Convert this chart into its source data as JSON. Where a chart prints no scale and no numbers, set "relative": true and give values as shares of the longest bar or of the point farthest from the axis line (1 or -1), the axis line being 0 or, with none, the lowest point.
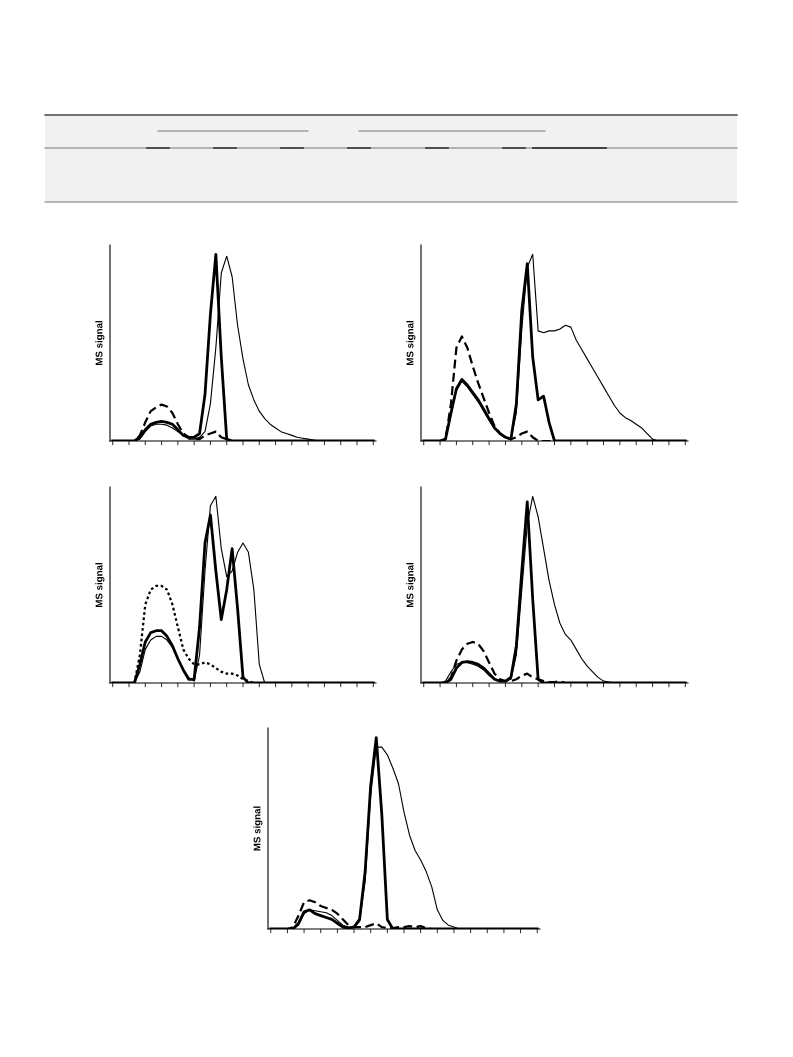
{
  "chart_data": [
    {
      "type": "line",
      "ylabel": "MS signal",
      "relative": true,
      "categories": [
        null,
        null,
        null,
        null,
        null,
        null,
        null,
        null,
        null,
        null,
        null,
        null,
        null,
        null,
        null,
        null,
        null,
        null,
        null,
        null,
        null,
        null,
        null,
        null,
        null,
        null,
        null,
        null,
        null,
        null,
        null,
        null,
        null,
        null,
        null,
        null,
        null,
        null,
        null,
        null,
        null,
        null,
        null,
        null,
        null,
        null,
        null,
        null,
        null
      ],
      "series": [
        {
          "color": "#000000",
          "line_style": "solid",
          "values": [
            0,
            0,
            0,
            0,
            0,
            0.02,
            0.06,
            0.09,
            0.1,
            0.105,
            0.1,
            0.09,
            0.06,
            0.03,
            0.02,
            0.02,
            0.04,
            0.25,
            0.68,
            1.0,
            0.45,
            0.01,
            0,
            0,
            0,
            0,
            0,
            0,
            0,
            0,
            0,
            0,
            0,
            0,
            0,
            0,
            0,
            0,
            0,
            0,
            0,
            0,
            0,
            0,
            0,
            0,
            0,
            0,
            0
          ]
        },
        {
          "color": "#000000",
          "line_style": "solid",
          "values": [
            0,
            0,
            0,
            0,
            0,
            0.01,
            0.05,
            0.08,
            0.09,
            0.09,
            0.085,
            0.07,
            0.05,
            0.03,
            0.01,
            0.01,
            0.02,
            0.05,
            0.2,
            0.5,
            0.9,
            0.99,
            0.88,
            0.62,
            0.44,
            0.3,
            0.22,
            0.16,
            0.12,
            0.09,
            0.07,
            0.05,
            0.04,
            0.03,
            0.02,
            0.015,
            0.01,
            0.005,
            0,
            0,
            0,
            0,
            0,
            0,
            0,
            0,
            0,
            0,
            0
          ]
        },
        {
          "color": "#000000",
          "line_style": "dashed",
          "values": [
            0,
            0,
            0,
            0,
            0,
            0.03,
            0.1,
            0.16,
            0.18,
            0.195,
            0.185,
            0.15,
            0.09,
            0.04,
            0.02,
            0.01,
            0.01,
            0.03,
            0.04,
            0.05,
            0.02,
            0.01,
            0,
            0,
            0,
            0,
            0,
            0,
            0,
            0,
            0,
            0,
            0,
            0,
            0,
            0,
            0,
            0,
            0,
            0,
            0,
            0,
            0,
            0,
            0,
            0,
            0,
            0,
            0
          ]
        }
      ]
    },
    {
      "type": "line",
      "ylabel": "MS signal",
      "relative": true,
      "categories": [
        null,
        null,
        null,
        null,
        null,
        null,
        null,
        null,
        null,
        null,
        null,
        null,
        null,
        null,
        null,
        null,
        null,
        null,
        null,
        null,
        null,
        null,
        null,
        null,
        null,
        null,
        null,
        null,
        null,
        null,
        null,
        null,
        null,
        null,
        null,
        null,
        null,
        null,
        null,
        null,
        null,
        null,
        null,
        null,
        null,
        null,
        null,
        null,
        null
      ],
      "series": [
        {
          "color": "#000000",
          "line_style": "solid",
          "values": [
            0,
            0,
            0,
            0,
            0.01,
            0.15,
            0.28,
            0.33,
            0.3,
            0.26,
            0.22,
            0.17,
            0.12,
            0.07,
            0.04,
            0.02,
            0.01,
            0.2,
            0.7,
            0.95,
            0.45,
            0.22,
            0.24,
            0.1,
            0,
            0,
            0,
            0,
            0,
            0,
            0,
            0,
            0,
            0,
            0,
            0,
            0,
            0,
            0,
            0,
            0,
            0,
            0,
            0,
            0,
            0,
            0,
            0,
            0
          ]
        },
        {
          "color": "#000000",
          "line_style": "solid",
          "values": [
            0,
            0,
            0,
            0,
            0.01,
            0.14,
            0.27,
            0.32,
            0.29,
            0.25,
            0.21,
            0.16,
            0.11,
            0.07,
            0.04,
            0.02,
            0.01,
            0.15,
            0.6,
            0.93,
            1.0,
            0.59,
            0.58,
            0.59,
            0.59,
            0.6,
            0.62,
            0.61,
            0.54,
            0.49,
            0.44,
            0.39,
            0.34,
            0.29,
            0.24,
            0.19,
            0.15,
            0.125,
            0.11,
            0.09,
            0.07,
            0.04,
            0.01,
            0,
            0,
            0,
            0,
            0,
            0
          ]
        },
        {
          "color": "#000000",
          "line_style": "dashed",
          "values": [
            0,
            0,
            0,
            0,
            0.01,
            0.2,
            0.5,
            0.56,
            0.5,
            0.4,
            0.31,
            0.23,
            0.15,
            0.08,
            0.04,
            0.02,
            0.01,
            0.02,
            0.04,
            0.05,
            0.02,
            0,
            0,
            0,
            0,
            0,
            0,
            0,
            0,
            0,
            0,
            0,
            0,
            0,
            0,
            0,
            0,
            0,
            0,
            0,
            0,
            0,
            0,
            0,
            0,
            0,
            0,
            0,
            0
          ]
        }
      ]
    },
    {
      "type": "line",
      "ylabel": "MS signal",
      "relative": true,
      "categories": [
        null,
        null,
        null,
        null,
        null,
        null,
        null,
        null,
        null,
        null,
        null,
        null,
        null,
        null,
        null,
        null,
        null,
        null,
        null,
        null,
        null,
        null,
        null,
        null,
        null,
        null,
        null,
        null,
        null,
        null,
        null,
        null,
        null,
        null,
        null,
        null,
        null,
        null,
        null,
        null,
        null,
        null,
        null,
        null,
        null,
        null,
        null,
        null,
        null
      ],
      "series": [
        {
          "color": "#000000",
          "line_style": "solid",
          "values": [
            0,
            0,
            0,
            0,
            0,
            0.1,
            0.22,
            0.27,
            0.28,
            0.28,
            0.25,
            0.2,
            0.13,
            0.07,
            0.02,
            0.02,
            0.3,
            0.75,
            0.9,
            0.6,
            0.34,
            0.5,
            0.72,
            0.4,
            0.03,
            0,
            0,
            0,
            0,
            0,
            0,
            0,
            0,
            0,
            0,
            0,
            0,
            0,
            0,
            0,
            0,
            0,
            0,
            0,
            0,
            0,
            0,
            0,
            0
          ]
        },
        {
          "color": "#000000",
          "line_style": "solid",
          "values": [
            0,
            0,
            0,
            0,
            0,
            0.06,
            0.18,
            0.23,
            0.25,
            0.25,
            0.23,
            0.19,
            0.13,
            0.07,
            0.03,
            0.01,
            0.15,
            0.6,
            0.95,
            1.0,
            0.72,
            0.57,
            0.6,
            0.7,
            0.75,
            0.7,
            0.5,
            0.1,
            0,
            0,
            0,
            0,
            0,
            0,
            0,
            0,
            0,
            0,
            0,
            0,
            0,
            0,
            0,
            0,
            0,
            0,
            0,
            0,
            0
          ]
        },
        {
          "color": "#000000",
          "line_style": "dotted",
          "values": [
            0,
            0,
            0,
            0,
            0,
            0.15,
            0.42,
            0.5,
            0.52,
            0.52,
            0.5,
            0.42,
            0.3,
            0.18,
            0.13,
            0.1,
            0.1,
            0.11,
            0.1,
            0.08,
            0.06,
            0.05,
            0.05,
            0.04,
            0.02,
            0.01,
            0,
            0,
            0,
            0,
            0,
            0,
            0,
            0,
            0,
            0,
            0,
            0,
            0,
            0,
            0,
            0,
            0,
            0,
            0,
            0,
            0,
            0,
            0
          ]
        }
      ]
    },
    {
      "type": "line",
      "ylabel": "MS signal",
      "relative": true,
      "categories": [
        null,
        null,
        null,
        null,
        null,
        null,
        null,
        null,
        null,
        null,
        null,
        null,
        null,
        null,
        null,
        null,
        null,
        null,
        null,
        null,
        null,
        null,
        null,
        null,
        null,
        null,
        null,
        null,
        null,
        null,
        null,
        null,
        null,
        null,
        null,
        null,
        null,
        null,
        null,
        null,
        null,
        null,
        null,
        null,
        null,
        null,
        null,
        null,
        null
      ],
      "series": [
        {
          "color": "#000000",
          "line_style": "solid",
          "values": [
            0,
            0,
            0,
            0,
            0,
            0.02,
            0.08,
            0.11,
            0.115,
            0.11,
            0.1,
            0.08,
            0.05,
            0.02,
            0.01,
            0.01,
            0.03,
            0.2,
            0.6,
            0.97,
            0.45,
            0.02,
            0,
            0,
            0,
            0,
            0,
            0,
            0,
            0,
            0,
            0,
            0,
            0,
            0,
            0,
            0,
            0,
            0,
            0,
            0,
            0,
            0,
            0,
            0,
            0,
            0,
            0,
            0
          ]
        },
        {
          "color": "#000000",
          "line_style": "solid",
          "values": [
            0,
            0,
            0,
            0,
            0.01,
            0.06,
            0.1,
            0.11,
            0.11,
            0.1,
            0.09,
            0.07,
            0.04,
            0.02,
            0.01,
            0.01,
            0.02,
            0.15,
            0.5,
            0.85,
            1.0,
            0.89,
            0.72,
            0.55,
            0.42,
            0.32,
            0.26,
            0.23,
            0.18,
            0.13,
            0.09,
            0.06,
            0.03,
            0.01,
            0.005,
            0,
            0,
            0,
            0,
            0,
            0,
            0,
            0,
            0,
            0,
            0,
            0,
            0,
            0
          ]
        },
        {
          "color": "#000000",
          "line_style": "dashed",
          "values": [
            0,
            0,
            0,
            0,
            0,
            0.03,
            0.12,
            0.18,
            0.21,
            0.22,
            0.21,
            0.17,
            0.11,
            0.05,
            0.02,
            0.01,
            0.01,
            0.02,
            0.04,
            0.05,
            0.03,
            0.02,
            0.01,
            0.005,
            0.005,
            0.01,
            0,
            0,
            0,
            0,
            0,
            0,
            0,
            0,
            0,
            0,
            0,
            0,
            0,
            0,
            0,
            0,
            0,
            0,
            0,
            0,
            0,
            0,
            0
          ]
        }
      ]
    },
    {
      "type": "line",
      "ylabel": "MS signal",
      "relative": true,
      "categories": [
        null,
        null,
        null,
        null,
        null,
        null,
        null,
        null,
        null,
        null,
        null,
        null,
        null,
        null,
        null,
        null,
        null,
        null,
        null,
        null,
        null,
        null,
        null,
        null,
        null,
        null,
        null,
        null,
        null,
        null,
        null,
        null,
        null,
        null,
        null,
        null,
        null,
        null,
        null,
        null,
        null,
        null,
        null,
        null,
        null,
        null,
        null,
        null,
        null
      ],
      "series": [
        {
          "color": "#000000",
          "line_style": "solid",
          "values": [
            0,
            0,
            0,
            0,
            0,
            0.03,
            0.09,
            0.1,
            0.08,
            0.07,
            0.06,
            0.05,
            0.03,
            0.01,
            0.005,
            0.01,
            0.05,
            0.3,
            0.75,
            1.0,
            0.6,
            0.05,
            0,
            0,
            0,
            0,
            0,
            0,
            0,
            0,
            0,
            0,
            0,
            0,
            0,
            0,
            0,
            0,
            0,
            0,
            0,
            0,
            0,
            0,
            0,
            0,
            0,
            0,
            0
          ]
        },
        {
          "color": "#000000",
          "line_style": "solid",
          "values": [
            0,
            0,
            0,
            0,
            0,
            0.02,
            0.08,
            0.1,
            0.095,
            0.09,
            0.085,
            0.07,
            0.045,
            0.02,
            0.01,
            0.01,
            0.04,
            0.25,
            0.7,
            0.95,
            0.95,
            0.91,
            0.84,
            0.76,
            0.61,
            0.49,
            0.41,
            0.36,
            0.3,
            0.22,
            0.1,
            0.045,
            0.02,
            0.01,
            0,
            0,
            0,
            0,
            0,
            0,
            0,
            0,
            0,
            0,
            0,
            0,
            0,
            0,
            0
          ]
        },
        {
          "color": "#000000",
          "line_style": "dashed",
          "values": [
            0,
            0,
            0,
            0,
            0.01,
            0.07,
            0.14,
            0.15,
            0.14,
            0.12,
            0.11,
            0.1,
            0.08,
            0.05,
            0.02,
            0.01,
            0.01,
            0.01,
            0.02,
            0.03,
            0.01,
            0.005,
            0.005,
            0.01,
            0.01,
            0.015,
            0.01,
            0.015,
            0.005,
            0,
            0,
            0,
            0,
            0,
            0,
            0,
            0,
            0,
            0,
            0,
            0,
            0,
            0,
            0,
            0,
            0,
            0,
            0,
            0
          ]
        }
      ]
    }
  ]
}
